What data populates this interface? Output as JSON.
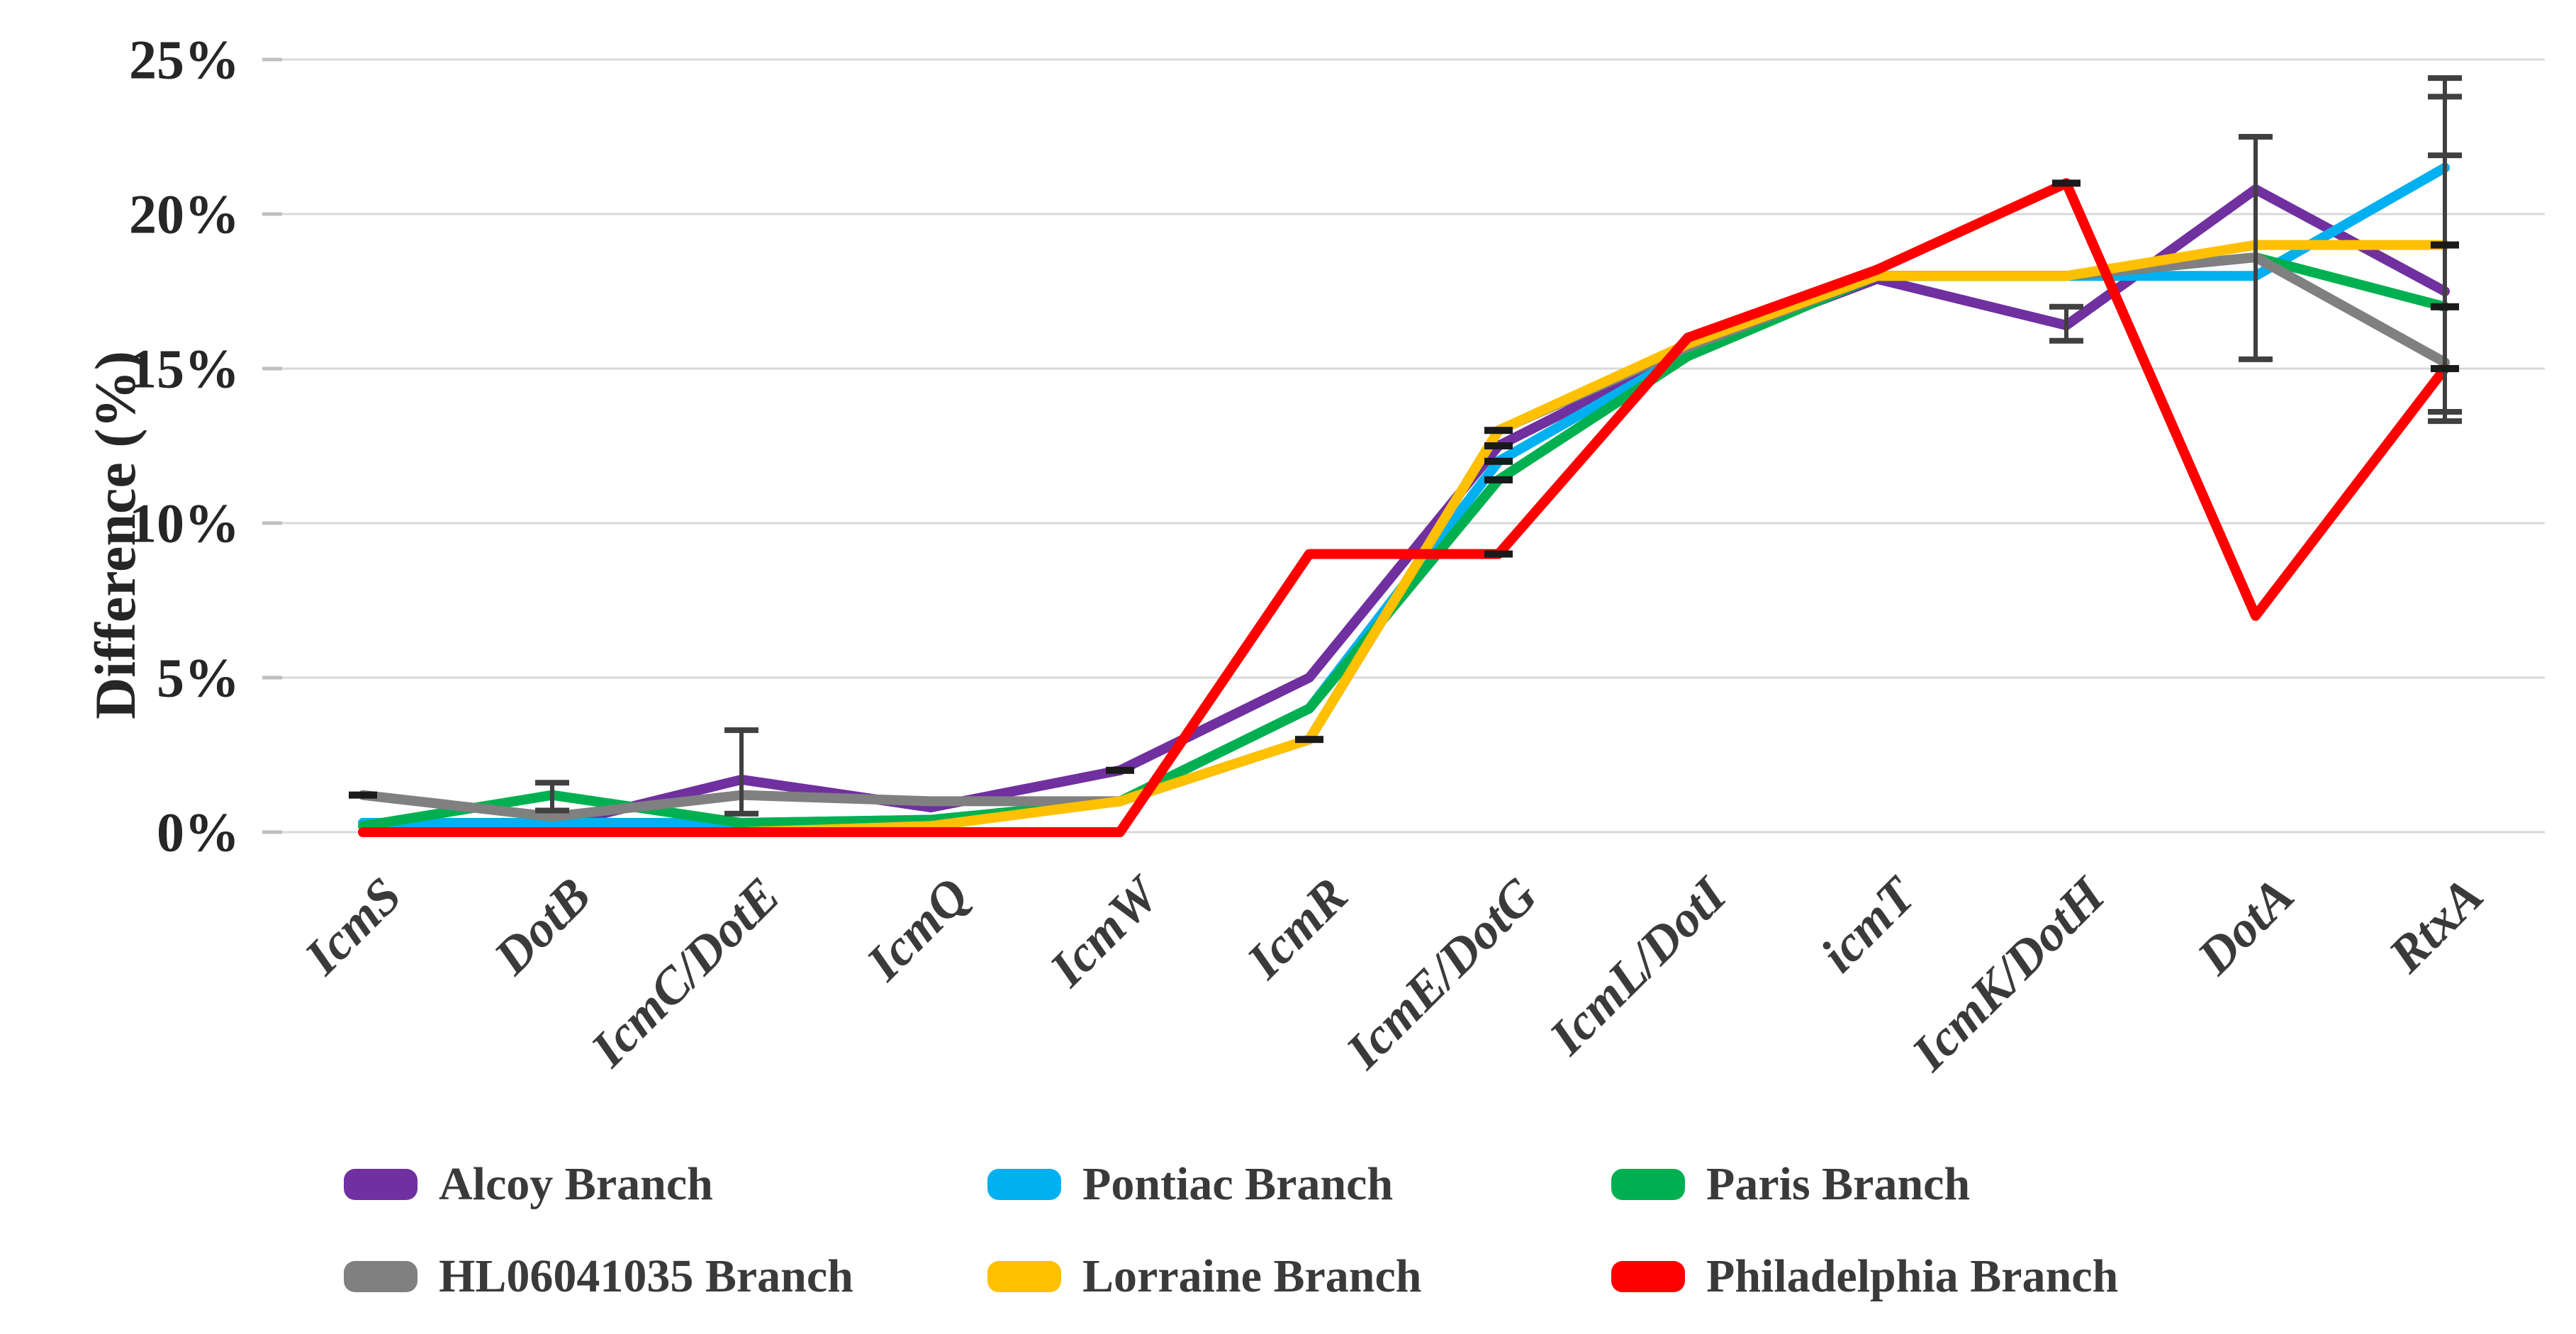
{
  "chart_data": {
    "type": "line",
    "title": "",
    "xlabel": "",
    "ylabel": "Difference (%)",
    "ylim": [
      0,
      25
    ],
    "ytick_step": 5,
    "ytick_labels": [
      "0%",
      "5%",
      "10%",
      "15%",
      "20%",
      "25%"
    ],
    "grid": true,
    "grid_color": "#D9D9D9",
    "tick_color": "#BFBFBF",
    "text_color": "#262626",
    "error_bar_color": "#404040",
    "marker_color": "#1a1a1a",
    "legend_position": "bottom",
    "categories": [
      "IcmS",
      "DotB",
      "IcmC/DotE",
      "IcmQ",
      "IcmW",
      "IcmR",
      "IcmE/DotG",
      "IcmL/DotI",
      "icmT",
      "IcmK/DotH",
      "DotA",
      "RtxA"
    ],
    "series": [
      {
        "name": "Alcoy Branch",
        "color": "#7030A0",
        "values": [
          0,
          0.2,
          1.7,
          0.8,
          2.0,
          5.0,
          12.5,
          15.6,
          17.9,
          16.4,
          20.8,
          17.5
        ]
      },
      {
        "name": "Pontiac Branch",
        "color": "#00B0F0",
        "values": [
          0.3,
          0.3,
          0.3,
          0.4,
          1.0,
          4.0,
          12.0,
          15.5,
          18.0,
          18.0,
          18.0,
          21.5
        ]
      },
      {
        "name": "Paris Branch",
        "color": "#00B050",
        "values": [
          0.2,
          1.2,
          0.3,
          0.4,
          1.0,
          4.0,
          11.4,
          15.4,
          18.0,
          18.0,
          18.6,
          17.0
        ]
      },
      {
        "name": "HL06041035 Branch",
        "color": "#808080",
        "values": [
          1.2,
          0.5,
          1.2,
          1.0,
          1.0,
          3.0,
          13.0,
          15.7,
          18.0,
          18.0,
          18.6,
          15.2
        ]
      },
      {
        "name": "Lorraine Branch",
        "color": "#FFC000",
        "values": [
          0,
          0,
          0,
          0.2,
          1.0,
          3.0,
          13.0,
          15.8,
          18.0,
          18.0,
          19.0,
          19.0
        ]
      },
      {
        "name": "Philadelphia Branch",
        "color": "#FF0000",
        "values": [
          0,
          0,
          0,
          0,
          0,
          9.0,
          9.0,
          16.0,
          18.2,
          21.0,
          7.0,
          15.0
        ]
      }
    ],
    "error_bars": [
      {
        "category_index": 1,
        "low": 0.7,
        "high": 1.6,
        "extra_caps": []
      },
      {
        "category_index": 2,
        "low": 0.6,
        "high": 3.3,
        "extra_caps": []
      },
      {
        "category_index": 9,
        "low": 15.9,
        "high": 17.0,
        "extra_caps": []
      },
      {
        "category_index": 10,
        "low": 15.3,
        "high": 22.5,
        "extra_caps": []
      },
      {
        "category_index": 11,
        "low": 13.3,
        "high": 24.4,
        "extra_caps": [
          23.8,
          21.9,
          13.6
        ]
      }
    ],
    "point_markers": [
      {
        "series_index": 3,
        "category_index": 0
      },
      {
        "series_index": 0,
        "category_index": 4
      },
      {
        "series_index": 4,
        "category_index": 5
      },
      {
        "series_index": 4,
        "category_index": 6
      },
      {
        "series_index": 0,
        "category_index": 6
      },
      {
        "series_index": 1,
        "category_index": 6
      },
      {
        "series_index": 2,
        "category_index": 6
      },
      {
        "series_index": 5,
        "category_index": 6
      },
      {
        "series_index": 5,
        "category_index": 9
      },
      {
        "series_index": 4,
        "category_index": 11
      },
      {
        "series_index": 2,
        "category_index": 11
      },
      {
        "series_index": 5,
        "category_index": 11
      }
    ]
  }
}
